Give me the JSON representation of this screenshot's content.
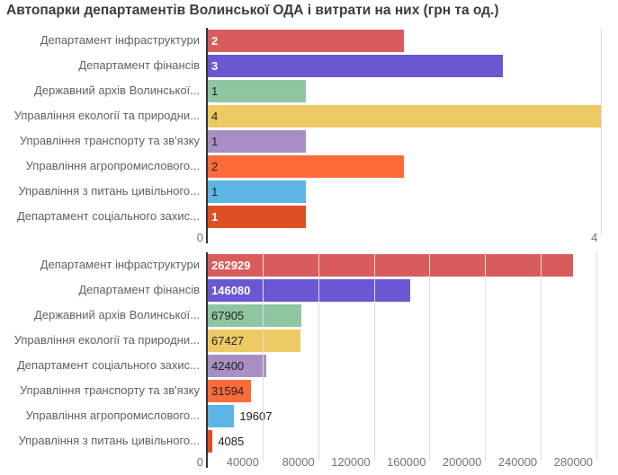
{
  "title": "Автопарки департаментів Волинської ОДА і витрати на них (грн та од.)",
  "palette": [
    "#d85c5c",
    "#6b57d2",
    "#8ec6a2",
    "#eeca64",
    "#a78fc4",
    "#fd6b3b",
    "#5cb5e2",
    "#e04e24"
  ],
  "text_colors": {
    "inside_white": "#ffffff",
    "inside_dark": "#212121",
    "axis": "#757575",
    "category": "#616161",
    "title": "#3c3c3c"
  },
  "chart_data": [
    {
      "type": "bar",
      "orientation": "horizontal",
      "name": "fleet-units-chart",
      "categories": [
        "Департамент інфраструктури",
        "Департамент фінансів",
        "Державний архів Волинської...",
        "Управління екології та природни...",
        "Управління транспорту та зв'язку",
        "Управління агропромислового...",
        "Управління з питань цивільного...",
        "Департамент соціального захис..."
      ],
      "values": [
        2,
        3,
        1,
        4,
        1,
        2,
        1,
        1
      ],
      "value_labels": [
        "2",
        "3",
        "1",
        "4",
        "1",
        "2",
        "1",
        "1"
      ],
      "label_styles": [
        "inside-white",
        "inside-white",
        "inside-dark",
        "inside-dark",
        "inside-dark",
        "inside-dark",
        "inside-dark",
        "inside-white"
      ],
      "xticks": [
        0,
        4
      ],
      "xtick_labels": [
        "0",
        "4"
      ],
      "xlim": [
        0,
        4.17
      ],
      "grid": true,
      "ylabel": "",
      "xlabel": ""
    },
    {
      "type": "bar",
      "orientation": "horizontal",
      "name": "fleet-cost-chart",
      "categories": [
        "Департамент інфраструктури",
        "Департамент фінансів",
        "Державний архів Волинської...",
        "Управління екології та природни...",
        "Департамент соціального захис...",
        "Управління транспорту та зв'язку",
        "Управління агропромислового...",
        "Управління з питань цивільного..."
      ],
      "values": [
        262929,
        146080,
        67905,
        67427,
        42400,
        31594,
        19607,
        4085
      ],
      "value_labels": [
        "262929",
        "146080",
        "67905",
        "67427",
        "42400",
        "31594",
        "19607",
        "4085"
      ],
      "label_styles": [
        "inside-white",
        "inside-white",
        "inside-dark",
        "inside-dark",
        "inside-dark",
        "inside-dark",
        "outside",
        "outside"
      ],
      "xticks": [
        0,
        40000,
        80000,
        120000,
        160000,
        200000,
        240000,
        280000
      ],
      "xtick_labels": [
        "0",
        "40000",
        "80000",
        "120000",
        "160000",
        "200000",
        "240000",
        "280000"
      ],
      "xlim": [
        0,
        295500
      ],
      "grid": true,
      "ylabel": "",
      "xlabel": ""
    }
  ]
}
